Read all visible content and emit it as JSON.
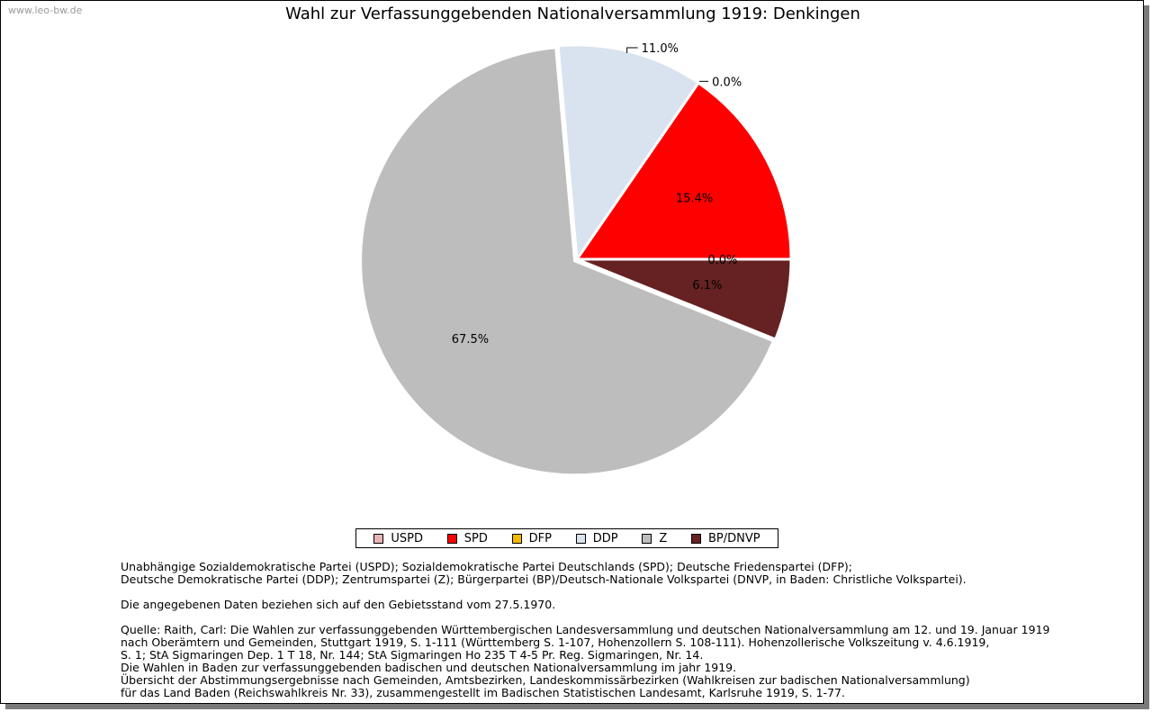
{
  "watermark": "www.leo-bw.de",
  "chart_data": {
    "type": "pie",
    "title": "Wahl zur Verfassunggebenden Nationalversammlung 1919: Denkingen",
    "slices": [
      {
        "name": "USPD",
        "value": 0.0,
        "label": "0.0%",
        "color": "#e8b4b4"
      },
      {
        "name": "SPD",
        "value": 15.4,
        "label": "15.4%",
        "color": "#ff0000"
      },
      {
        "name": "DFP",
        "value": 0.0,
        "label": "0.0%",
        "color": "#f5b800"
      },
      {
        "name": "DDP",
        "value": 11.0,
        "label": "11.0%",
        "color": "#d9e2ef"
      },
      {
        "name": "Z",
        "value": 67.5,
        "label": "67.5%",
        "color": "#bdbdbd"
      },
      {
        "name": "BP/DNVP",
        "value": 6.1,
        "label": "6.1%",
        "color": "#662222"
      }
    ],
    "legend_position": "bottom"
  },
  "notes": {
    "parties": "Unabhängige Sozialdemokratische Partei (USPD); Sozialdemokratische Partei Deutschlands (SPD); Deutsche Friedenspartei (DFP);\nDeutsche Demokratische Partei (DDP); Zentrumspartei (Z); Bürgerpartei (BP)/Deutsch-Nationale Volkspartei (DNVP, in Baden: Christliche Volkspartei).",
    "territory": "Die angegebenen Daten beziehen sich auf den Gebietsstand vom 27.5.1970.",
    "source": "Quelle: Raith, Carl: Die Wahlen zur verfassunggebenden Württembergischen Landesversammlung und deutschen Nationalversammlung am 12. und 19. Januar 1919\nnach Oberämtern und Gemeinden, Stuttgart 1919, S. 1-111 (Württemberg S. 1-107, Hohenzollern S. 108-111). Hohenzollerische Volkszeitung v. 4.6.1919,\nS. 1; StA Sigmaringen Dep. 1 T 18, Nr. 144; StA Sigmaringen Ho 235 T 4-5 Pr. Reg. Sigmaringen, Nr. 14.\nDie Wahlen in Baden zur verfassunggebenden badischen und deutschen Nationalversammlung im jahr 1919.\nÜbersicht der Abstimmungsergebnisse nach Gemeinden, Amtsbezirken, Landeskommissärbezirken (Wahlkreisen zur badischen Nationalversammlung)\nfür das Land Baden (Reichswahlkreis Nr. 33), zusammengestellt im Badischen Statistischen Landesamt, Karlsruhe 1919, S. 1-77."
  }
}
